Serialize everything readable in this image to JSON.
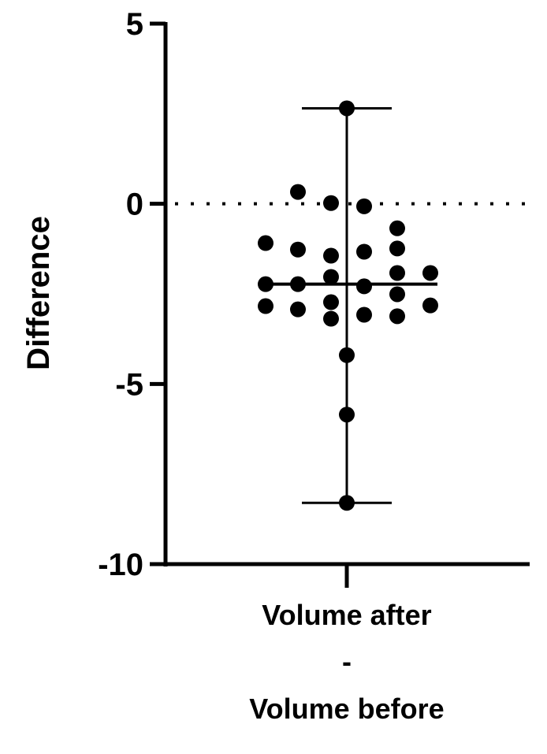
{
  "chart_data": {
    "type": "scatter",
    "title": "",
    "xlabel": "",
    "ylabel": "Difference",
    "ylim": [
      -10,
      5
    ],
    "yticks": [
      5,
      0,
      -5,
      -10
    ],
    "ytick_labels": [
      "5",
      "0",
      "-5",
      "-10"
    ],
    "categories": [
      [
        "Volume after",
        "-",
        "Volume before"
      ]
    ],
    "reference_line": 0,
    "grid": false,
    "series": [
      {
        "name": "Volume after - Volume before",
        "values": [
          2.65,
          0.33,
          0.02,
          -0.07,
          -0.68,
          -1.09,
          -1.27,
          -1.44,
          -1.33,
          -1.24,
          -2.23,
          -2.23,
          -2.03,
          -2.29,
          -1.92,
          -2.51,
          -1.92,
          -2.84,
          -2.93,
          -2.73,
          -3.19,
          -3.08,
          -3.12,
          -2.82,
          -4.2,
          -5.85,
          -8.3
        ],
        "median": -2.23,
        "min": -8.3,
        "max": 2.65
      }
    ],
    "colors": {
      "points": "#000000",
      "axes": "#000000"
    }
  }
}
